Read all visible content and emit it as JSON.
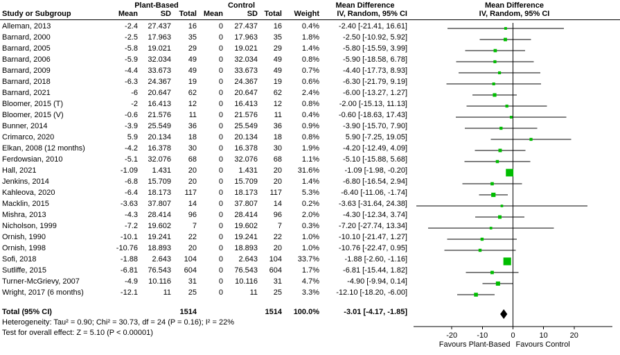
{
  "header": {
    "group_plant": "Plant-Based",
    "group_control": "Control",
    "group_md_text": "Mean Difference",
    "group_md_plot": "Mean Difference",
    "col_study": "Study or Subgroup",
    "col_mean_p": "Mean",
    "col_sd_p": "SD",
    "col_total_p": "Total",
    "col_mean_c": "Mean",
    "col_sd_c": "SD",
    "col_total_c": "Total",
    "col_weight": "Weight",
    "col_ci_text": "IV, Random, 95% CI",
    "col_ci_plot": "IV, Random, 95% CI"
  },
  "studies": [
    {
      "name": "Alleman, 2013",
      "mean": "-2.4",
      "sd": "27.437",
      "total": "16",
      "c_mean": "0",
      "c_sd": "27.437",
      "c_total": "16",
      "weight": "0.4%",
      "md": "-2.40 [-21.41, 16.61]"
    },
    {
      "name": "Barnard, 2000",
      "mean": "-2.5",
      "sd": "17.963",
      "total": "35",
      "c_mean": "0",
      "c_sd": "17.963",
      "c_total": "35",
      "weight": "1.8%",
      "md": "-2.50 [-10.92, 5.92]"
    },
    {
      "name": "Barnard, 2005",
      "mean": "-5.8",
      "sd": "19.021",
      "total": "29",
      "c_mean": "0",
      "c_sd": "19.021",
      "c_total": "29",
      "weight": "1.4%",
      "md": "-5.80 [-15.59, 3.99]"
    },
    {
      "name": "Barnard, 2006",
      "mean": "-5.9",
      "sd": "32.034",
      "total": "49",
      "c_mean": "0",
      "c_sd": "32.034",
      "c_total": "49",
      "weight": "0.8%",
      "md": "-5.90 [-18.58, 6.78]"
    },
    {
      "name": "Barnard, 2009",
      "mean": "-4.4",
      "sd": "33.673",
      "total": "49",
      "c_mean": "0",
      "c_sd": "33.673",
      "c_total": "49",
      "weight": "0.7%",
      "md": "-4.40 [-17.73, 8.93]"
    },
    {
      "name": "Barnard, 2018",
      "mean": "-6.3",
      "sd": "24.367",
      "total": "19",
      "c_mean": "0",
      "c_sd": "24.367",
      "c_total": "19",
      "weight": "0.6%",
      "md": "-6.30 [-21.79, 9.19]"
    },
    {
      "name": "Barnard, 2021",
      "mean": "-6",
      "sd": "20.647",
      "total": "62",
      "c_mean": "0",
      "c_sd": "20.647",
      "c_total": "62",
      "weight": "2.4%",
      "md": "-6.00 [-13.27, 1.27]"
    },
    {
      "name": "Bloomer, 2015 (T)",
      "mean": "-2",
      "sd": "16.413",
      "total": "12",
      "c_mean": "0",
      "c_sd": "16.413",
      "c_total": "12",
      "weight": "0.8%",
      "md": "-2.00 [-15.13, 11.13]"
    },
    {
      "name": "Bloomer, 2015 (V)",
      "mean": "-0.6",
      "sd": "21.576",
      "total": "11",
      "c_mean": "0",
      "c_sd": "21.576",
      "c_total": "11",
      "weight": "0.4%",
      "md": "-0.60 [-18.63, 17.43]"
    },
    {
      "name": "Bunner, 2014",
      "mean": "-3.9",
      "sd": "25.549",
      "total": "36",
      "c_mean": "0",
      "c_sd": "25.549",
      "c_total": "36",
      "weight": "0.9%",
      "md": "-3.90 [-15.70, 7.90]"
    },
    {
      "name": "Crimarco, 2020",
      "mean": "5.9",
      "sd": "20.134",
      "total": "18",
      "c_mean": "0",
      "c_sd": "20.134",
      "c_total": "18",
      "weight": "0.8%",
      "md": "5.90 [-7.25, 19.05]"
    },
    {
      "name": "Elkan, 2008 (12 months)",
      "mean": "-4.2",
      "sd": "16.378",
      "total": "30",
      "c_mean": "0",
      "c_sd": "16.378",
      "c_total": "30",
      "weight": "1.9%",
      "md": "-4.20 [-12.49, 4.09]"
    },
    {
      "name": "Ferdowsian, 2010",
      "mean": "-5.1",
      "sd": "32.076",
      "total": "68",
      "c_mean": "0",
      "c_sd": "32.076",
      "c_total": "68",
      "weight": "1.1%",
      "md": "-5.10 [-15.88, 5.68]"
    },
    {
      "name": "Hall, 2021",
      "mean": "-1.09",
      "sd": "1.431",
      "total": "20",
      "c_mean": "0",
      "c_sd": "1.431",
      "c_total": "20",
      "weight": "31.6%",
      "md": "-1.09 [-1.98, -0.20]"
    },
    {
      "name": "Jenkins, 2014",
      "mean": "-6.8",
      "sd": "15.709",
      "total": "20",
      "c_mean": "0",
      "c_sd": "15.709",
      "c_total": "20",
      "weight": "1.4%",
      "md": "-6.80 [-16.54, 2.94]"
    },
    {
      "name": "Kahleova, 2020",
      "mean": "-6.4",
      "sd": "18.173",
      "total": "117",
      "c_mean": "0",
      "c_sd": "18.173",
      "c_total": "117",
      "weight": "5.3%",
      "md": "-6.40 [-11.06, -1.74]"
    },
    {
      "name": "Macklin, 2015",
      "mean": "-3.63",
      "sd": "37.807",
      "total": "14",
      "c_mean": "0",
      "c_sd": "37.807",
      "c_total": "14",
      "weight": "0.2%",
      "md": "-3.63 [-31.64, 24.38]"
    },
    {
      "name": "Mishra, 2013",
      "mean": "-4.3",
      "sd": "28.414",
      "total": "96",
      "c_mean": "0",
      "c_sd": "28.414",
      "c_total": "96",
      "weight": "2.0%",
      "md": "-4.30 [-12.34, 3.74]"
    },
    {
      "name": "Nicholson, 1999",
      "mean": "-7.2",
      "sd": "19.602",
      "total": "7",
      "c_mean": "0",
      "c_sd": "19.602",
      "c_total": "7",
      "weight": "0.3%",
      "md": "-7.20 [-27.74, 13.34]"
    },
    {
      "name": "Ornish, 1990",
      "mean": "-10.1",
      "sd": "19.241",
      "total": "22",
      "c_mean": "0",
      "c_sd": "19.241",
      "c_total": "22",
      "weight": "1.0%",
      "md": "-10.10 [-21.47, 1.27]"
    },
    {
      "name": "Ornish, 1998",
      "mean": "-10.76",
      "sd": "18.893",
      "total": "20",
      "c_mean": "0",
      "c_sd": "18.893",
      "c_total": "20",
      "weight": "1.0%",
      "md": "-10.76 [-22.47, 0.95]"
    },
    {
      "name": "Sofi, 2018",
      "mean": "-1.88",
      "sd": "2.643",
      "total": "104",
      "c_mean": "0",
      "c_sd": "2.643",
      "c_total": "104",
      "weight": "33.7%",
      "md": "-1.88 [-2.60, -1.16]"
    },
    {
      "name": "Sutliffe, 2015",
      "mean": "-6.81",
      "sd": "76.543",
      "total": "604",
      "c_mean": "0",
      "c_sd": "76.543",
      "c_total": "604",
      "weight": "1.7%",
      "md": "-6.81 [-15.44, 1.82]"
    },
    {
      "name": "Turner-McGrievy, 2007",
      "mean": "-4.9",
      "sd": "10.116",
      "total": "31",
      "c_mean": "0",
      "c_sd": "10.116",
      "c_total": "31",
      "weight": "4.7%",
      "md": "-4.90 [-9.94, 0.14]"
    },
    {
      "name": "Wright, 2017 (6 months)",
      "mean": "-12.1",
      "sd": "11",
      "total": "25",
      "c_mean": "0",
      "c_sd": "11",
      "c_total": "25",
      "weight": "3.3%",
      "md": "-12.10 [-18.20, -6.00]"
    }
  ],
  "total_row": {
    "label": "Total (95% CI)",
    "total_p": "1514",
    "total_c": "1514",
    "weight": "100.0%",
    "md": "-3.01 [-4.17, -1.85]"
  },
  "footer": {
    "heterogeneity": "Heterogeneity: Tau² = 0.90; Chi² = 30.73, df = 24 (P = 0.16); I² = 22%",
    "overall_effect": "Test for overall effect: Z = 5.10 (P < 0.00001)"
  },
  "colors": {
    "marker": "#00bd00",
    "line": "#000000",
    "diamond": "#000000"
  },
  "chart_data": {
    "type": "scatter",
    "subtype": "forest-plot",
    "title": "Mean Difference, IV, Random, 95% CI",
    "x_range": [
      -32.5,
      32.5
    ],
    "x_ticks": [
      -20,
      -10,
      0,
      10,
      20
    ],
    "xlabel_left": "Favours Plant-Based",
    "xlabel_right": "Favours Control",
    "grid": false,
    "points": [
      {
        "est": -2.4,
        "lo": -21.41,
        "hi": 16.61,
        "weight": 0.4
      },
      {
        "est": -2.5,
        "lo": -10.92,
        "hi": 5.92,
        "weight": 1.8
      },
      {
        "est": -5.8,
        "lo": -15.59,
        "hi": 3.99,
        "weight": 1.4
      },
      {
        "est": -5.9,
        "lo": -18.58,
        "hi": 6.78,
        "weight": 0.8
      },
      {
        "est": -4.4,
        "lo": -17.73,
        "hi": 8.93,
        "weight": 0.7
      },
      {
        "est": -6.3,
        "lo": -21.79,
        "hi": 9.19,
        "weight": 0.6
      },
      {
        "est": -6.0,
        "lo": -13.27,
        "hi": 1.27,
        "weight": 2.4
      },
      {
        "est": -2.0,
        "lo": -15.13,
        "hi": 11.13,
        "weight": 0.8
      },
      {
        "est": -0.6,
        "lo": -18.63,
        "hi": 17.43,
        "weight": 0.4
      },
      {
        "est": -3.9,
        "lo": -15.7,
        "hi": 7.9,
        "weight": 0.9
      },
      {
        "est": 5.9,
        "lo": -7.25,
        "hi": 19.05,
        "weight": 0.8
      },
      {
        "est": -4.2,
        "lo": -12.49,
        "hi": 4.09,
        "weight": 1.9
      },
      {
        "est": -5.1,
        "lo": -15.88,
        "hi": 5.68,
        "weight": 1.1
      },
      {
        "est": -1.09,
        "lo": -1.98,
        "hi": -0.2,
        "weight": 31.6
      },
      {
        "est": -6.8,
        "lo": -16.54,
        "hi": 2.94,
        "weight": 1.4
      },
      {
        "est": -6.4,
        "lo": -11.06,
        "hi": -1.74,
        "weight": 5.3
      },
      {
        "est": -3.63,
        "lo": -31.64,
        "hi": 24.38,
        "weight": 0.2
      },
      {
        "est": -4.3,
        "lo": -12.34,
        "hi": 3.74,
        "weight": 2.0
      },
      {
        "est": -7.2,
        "lo": -27.74,
        "hi": 13.34,
        "weight": 0.3
      },
      {
        "est": -10.1,
        "lo": -21.47,
        "hi": 1.27,
        "weight": 1.0
      },
      {
        "est": -10.76,
        "lo": -22.47,
        "hi": 0.95,
        "weight": 1.0
      },
      {
        "est": -1.88,
        "lo": -2.6,
        "hi": -1.16,
        "weight": 33.7
      },
      {
        "est": -6.81,
        "lo": -15.44,
        "hi": 1.82,
        "weight": 1.7
      },
      {
        "est": -4.9,
        "lo": -9.94,
        "hi": 0.14,
        "weight": 4.7
      },
      {
        "est": -12.1,
        "lo": -18.2,
        "hi": -6.0,
        "weight": 3.3
      }
    ],
    "diamond": {
      "est": -3.01,
      "lo": -4.17,
      "hi": -1.85
    }
  }
}
